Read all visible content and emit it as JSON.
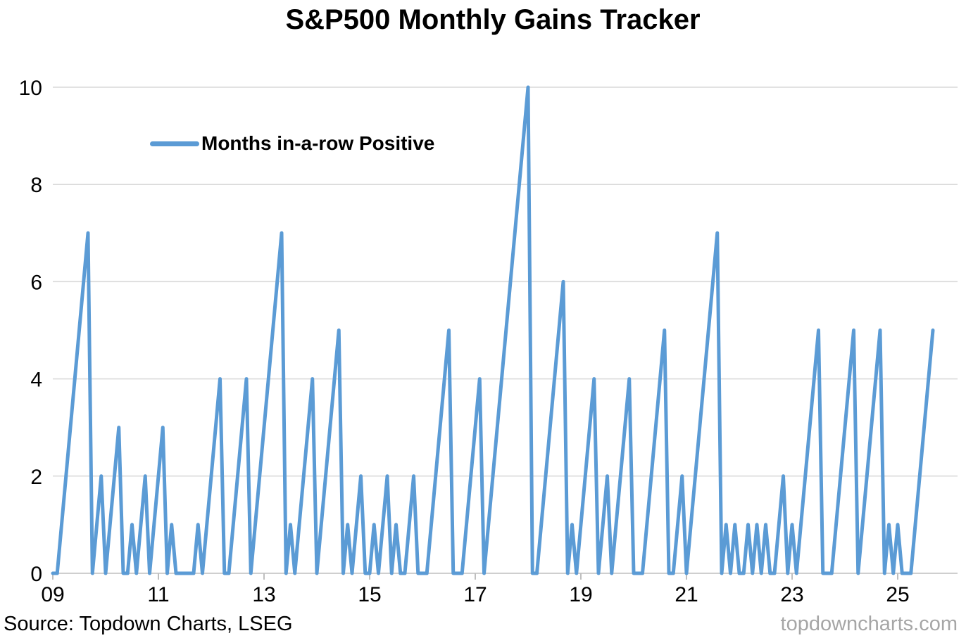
{
  "legend": {
    "position": "inside-top-left"
  },
  "footer": {
    "source": "Source: Topdown Charts, LSEG",
    "watermark": "topdowncharts.com"
  },
  "chart_data": {
    "type": "line",
    "title": "S&P500 Monthly Gains Tracker",
    "xlabel": "",
    "ylabel": "",
    "x_unit": "month",
    "x_start": "2009-01",
    "x_end": "2025-09",
    "xtick_labels": [
      "09",
      "11",
      "13",
      "15",
      "17",
      "19",
      "21",
      "23",
      "25"
    ],
    "xtick_interval_years": 2,
    "yticks": [
      0,
      2,
      4,
      6,
      8,
      10
    ],
    "ylim": [
      0,
      10
    ],
    "grid": "horizontal-only",
    "legend_position": "inside-top-left",
    "line_color": "#5B9BD5",
    "grid_color": "#D9D9D9",
    "axis_color": "#BFBFBF",
    "tick_label_color": "#000000",
    "series": [
      {
        "name": "Months in-a-row Positive",
        "values": [
          0,
          0,
          1,
          2,
          3,
          4,
          5,
          6,
          7,
          0,
          1,
          2,
          0,
          1,
          2,
          3,
          0,
          0,
          1,
          0,
          1,
          2,
          0,
          1,
          2,
          3,
          0,
          1,
          0,
          0,
          0,
          0,
          0,
          1,
          0,
          1,
          2,
          3,
          4,
          0,
          0,
          1,
          2,
          3,
          4,
          0,
          1,
          2,
          3,
          4,
          5,
          6,
          7,
          0,
          1,
          0,
          1,
          2,
          3,
          4,
          0,
          1,
          2,
          3,
          4,
          5,
          0,
          1,
          0,
          1,
          2,
          0,
          0,
          1,
          0,
          1,
          2,
          0,
          1,
          0,
          0,
          1,
          2,
          0,
          0,
          0,
          1,
          2,
          3,
          4,
          5,
          0,
          0,
          0,
          1,
          2,
          3,
          4,
          0,
          1,
          2,
          3,
          4,
          5,
          6,
          7,
          8,
          9,
          10,
          0,
          0,
          1,
          2,
          3,
          4,
          5,
          6,
          0,
          1,
          0,
          1,
          2,
          3,
          4,
          0,
          1,
          2,
          0,
          1,
          2,
          3,
          4,
          0,
          0,
          0,
          1,
          2,
          3,
          4,
          5,
          0,
          0,
          1,
          2,
          0,
          1,
          2,
          3,
          4,
          5,
          6,
          7,
          0,
          1,
          0,
          1,
          0,
          0,
          1,
          0,
          1,
          0,
          1,
          0,
          0,
          1,
          2,
          0,
          1,
          0,
          1,
          2,
          3,
          4,
          5,
          0,
          0,
          0,
          1,
          2,
          3,
          4,
          5,
          0,
          1,
          2,
          3,
          4,
          5,
          0,
          1,
          0,
          1,
          0,
          0,
          0,
          1,
          2,
          3,
          4,
          5
        ]
      }
    ]
  }
}
